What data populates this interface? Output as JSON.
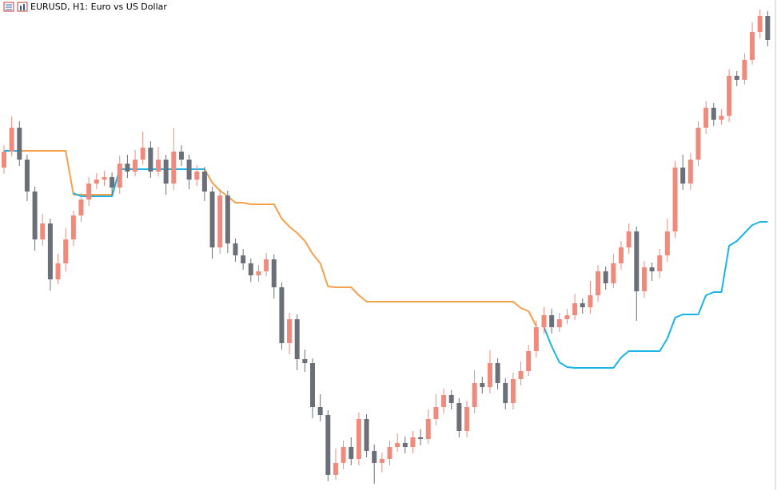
{
  "chart_data": {
    "type": "candlestick",
    "title": "EURUSD, H1:  Euro vs US Dollar",
    "ylim": [
      0,
      614
    ],
    "up_color": "#ef8a7c",
    "down_color": "#6b6f78",
    "candles": {
      "open": [
        404,
        424,
        454,
        414,
        374,
        314,
        334,
        264,
        284,
        314,
        344,
        364,
        384,
        389,
        392,
        379,
        409,
        399,
        414,
        429,
        399,
        414,
        384,
        424,
        414,
        389,
        399,
        374,
        304,
        369,
        309,
        294,
        284,
        269,
        274,
        289,
        254,
        184,
        214,
        164,
        159,
        104,
        94,
        19,
        34,
        54,
        39,
        89,
        49,
        34,
        39,
        54,
        59,
        54,
        66,
        64,
        89,
        104,
        119,
        109,
        74,
        104,
        134,
        129,
        159,
        134,
        109,
        139,
        149,
        174,
        204,
        219,
        204,
        214,
        219,
        234,
        229,
        244,
        274,
        259,
        284,
        304,
        324,
        249,
        279,
        274,
        294,
        324,
        404,
        384,
        414,
        454,
        479,
        464,
        469,
        519,
        514,
        539,
        574,
        594
      ],
      "high": [
        432,
        468,
        462,
        420,
        380,
        346,
        340,
        296,
        328,
        350,
        372,
        392,
        397,
        400,
        398,
        419,
        420,
        426,
        449,
        437,
        430,
        420,
        454,
        432,
        420,
        407,
        405,
        380,
        377,
        375,
        315,
        302,
        290,
        282,
        297,
        295,
        260,
        222,
        220,
        176,
        165,
        120,
        100,
        52,
        62,
        66,
        97,
        95,
        57,
        47,
        62,
        71,
        67,
        74,
        76,
        101,
        120,
        127,
        125,
        115,
        112,
        150,
        142,
        175,
        165,
        140,
        147,
        161,
        182,
        212,
        229,
        227,
        222,
        227,
        246,
        240,
        262,
        282,
        280,
        296,
        312,
        334,
        330,
        287,
        285,
        302,
        340,
        412,
        420,
        422,
        462,
        487,
        485,
        477,
        527,
        525,
        547,
        586,
        602,
        600
      ],
      "low": [
        396,
        418,
        406,
        362,
        300,
        306,
        250,
        258,
        274,
        306,
        336,
        356,
        377,
        381,
        369,
        371,
        391,
        393,
        408,
        391,
        393,
        370,
        376,
        406,
        377,
        381,
        362,
        290,
        296,
        297,
        286,
        276,
        261,
        261,
        268,
        240,
        176,
        170,
        150,
        148,
        90,
        86,
        11,
        13,
        26,
        31,
        31,
        41,
        8,
        22,
        31,
        48,
        46,
        46,
        56,
        58,
        81,
        96,
        101,
        66,
        66,
        96,
        121,
        121,
        126,
        101,
        101,
        131,
        143,
        166,
        196,
        196,
        198,
        208,
        213,
        221,
        221,
        236,
        251,
        253,
        276,
        296,
        212,
        241,
        262,
        266,
        286,
        316,
        376,
        376,
        406,
        446,
        456,
        458,
        461,
        506,
        508,
        533,
        566,
        556
      ],
      "close": [
        424,
        454,
        414,
        374,
        314,
        334,
        264,
        284,
        314,
        344,
        364,
        384,
        389,
        392,
        379,
        409,
        399,
        414,
        429,
        399,
        414,
        384,
        424,
        414,
        389,
        399,
        374,
        304,
        369,
        309,
        294,
        284,
        269,
        274,
        289,
        254,
        184,
        214,
        164,
        159,
        104,
        94,
        19,
        34,
        54,
        39,
        89,
        49,
        34,
        39,
        54,
        59,
        54,
        66,
        64,
        89,
        104,
        119,
        109,
        74,
        104,
        134,
        129,
        159,
        134,
        109,
        139,
        149,
        174,
        204,
        219,
        204,
        214,
        219,
        234,
        229,
        244,
        274,
        259,
        284,
        304,
        324,
        249,
        279,
        274,
        294,
        324,
        404,
        384,
        414,
        454,
        479,
        464,
        469,
        519,
        514,
        539,
        574,
        594,
        564
      ]
    },
    "lines": [
      {
        "color": "#f5a04a",
        "values": [
          425,
          425,
          425,
          425,
          425,
          425,
          425,
          425,
          425,
          370,
          370,
          370,
          370,
          370,
          370,
          402,
          402,
          402,
          402,
          402,
          402,
          402,
          402,
          402,
          402,
          402,
          402,
          385,
          375,
          368,
          360,
          360,
          358,
          358,
          358,
          358,
          340,
          330,
          322,
          312,
          296,
          284,
          255,
          254,
          254,
          254,
          244,
          236,
          236,
          236,
          236,
          236,
          236,
          236,
          236,
          236,
          236,
          236,
          236,
          236,
          236,
          236,
          236,
          236,
          236,
          236,
          236,
          228,
          224,
          205,
          null,
          null,
          null,
          null,
          null,
          null,
          null,
          null,
          null,
          null,
          null,
          null,
          null,
          null,
          null,
          null,
          null,
          null,
          null,
          null,
          null,
          null,
          null,
          null,
          null,
          null,
          null,
          null,
          null,
          null
        ]
      },
      {
        "color": "#1ab4ea",
        "values": [
          425,
          425,
          425,
          null,
          null,
          null,
          null,
          null,
          null,
          372,
          368,
          368,
          368,
          368,
          368,
          402,
          402,
          402,
          402,
          402,
          402,
          402,
          402,
          402,
          402,
          402,
          402,
          null,
          null,
          null,
          null,
          null,
          null,
          null,
          null,
          null,
          null,
          null,
          null,
          null,
          null,
          null,
          null,
          null,
          null,
          null,
          null,
          null,
          null,
          null,
          null,
          null,
          null,
          null,
          null,
          null,
          null,
          null,
          null,
          null,
          null,
          null,
          null,
          null,
          null,
          null,
          null,
          null,
          null,
          null,
          204,
          180,
          160,
          154,
          153,
          153,
          153,
          153,
          153,
          153,
          166,
          174,
          174,
          174,
          174,
          174,
          190,
          216,
          220,
          220,
          220,
          244,
          248,
          248,
          306,
          312,
          322,
          332,
          336,
          336
        ]
      }
    ]
  }
}
